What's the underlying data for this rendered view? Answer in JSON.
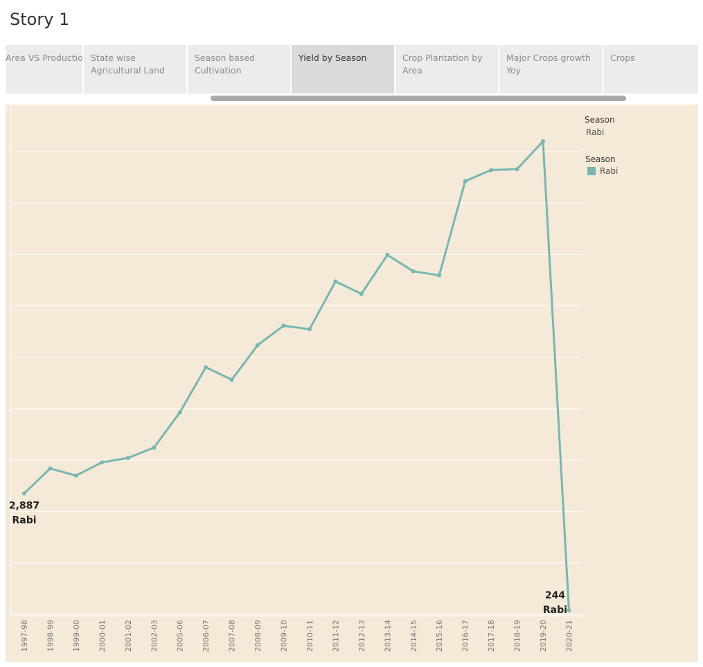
{
  "story": {
    "title": "Story 1"
  },
  "tabs": [
    {
      "label": "Area VS Production",
      "active": false
    },
    {
      "label": "State wise Agricultural Land",
      "active": false
    },
    {
      "label": "Season based Cultivation",
      "active": false
    },
    {
      "label": "Yield by Season",
      "active": true
    },
    {
      "label": "Crop Plantation by Area",
      "active": false
    },
    {
      "label": "Major Crops growth Yoy",
      "active": false
    },
    {
      "label": "Crops",
      "active": false
    }
  ],
  "filter": {
    "title": "Season",
    "value": "Rabi"
  },
  "legend": {
    "title": "Season",
    "item": "Rabi"
  },
  "colors": {
    "line": "#76b7b2",
    "panel": "#f5e9d8",
    "grid": "#ffffff"
  },
  "chart_data": {
    "type": "line",
    "x": [
      "1997-98",
      "1998-99",
      "1999-00",
      "2000-01",
      "2001-02",
      "2002-03",
      "2005-06",
      "2006-07",
      "2007-08",
      "2008-09",
      "2009-10",
      "2010-11",
      "2011-12",
      "2012-13",
      "2013-14",
      "2014-15",
      "2015-16",
      "2016-17",
      "2017-18",
      "2018-19",
      "2019-20",
      "2020-21"
    ],
    "series": [
      {
        "name": "Rabi",
        "values": [
          2887,
          3450,
          3290,
          3590,
          3690,
          3920,
          4720,
          5740,
          5460,
          6240,
          6680,
          6600,
          7680,
          7400,
          8280,
          7910,
          7820,
          9950,
          10200,
          10220,
          10850,
          244
        ]
      }
    ],
    "labels": [
      {
        "index": 0,
        "value": "2,887",
        "series": "Rabi"
      },
      {
        "index": 21,
        "value": "244",
        "series": "Rabi"
      }
    ],
    "ylim": [
      120,
      11680
    ],
    "grid": true,
    "legend_position": "top-right"
  }
}
